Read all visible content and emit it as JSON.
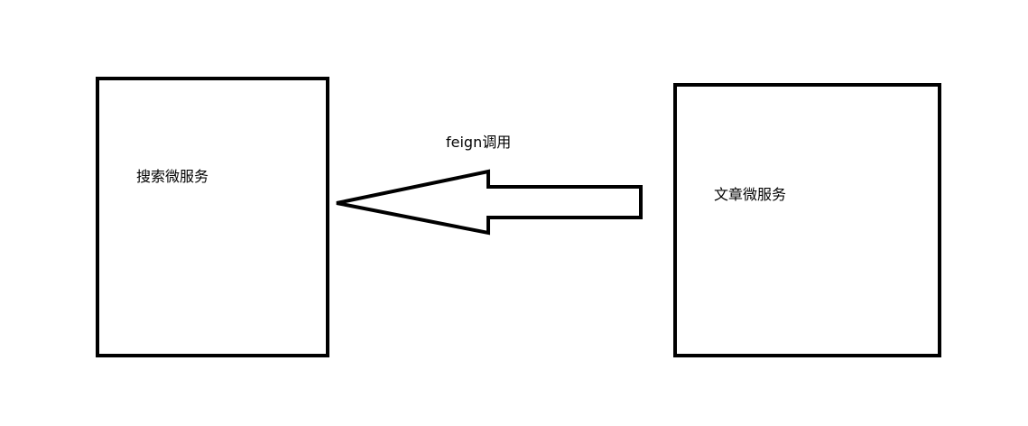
{
  "nodes": {
    "search_service": {
      "label": "搜索微服务"
    },
    "article_service": {
      "label": "文章微服务"
    }
  },
  "edge": {
    "label": "feign调用",
    "from": "文章微服务",
    "to": "搜索微服务",
    "style": "hollow block arrow"
  },
  "colors": {
    "stroke": "#000000",
    "background": "#ffffff"
  }
}
